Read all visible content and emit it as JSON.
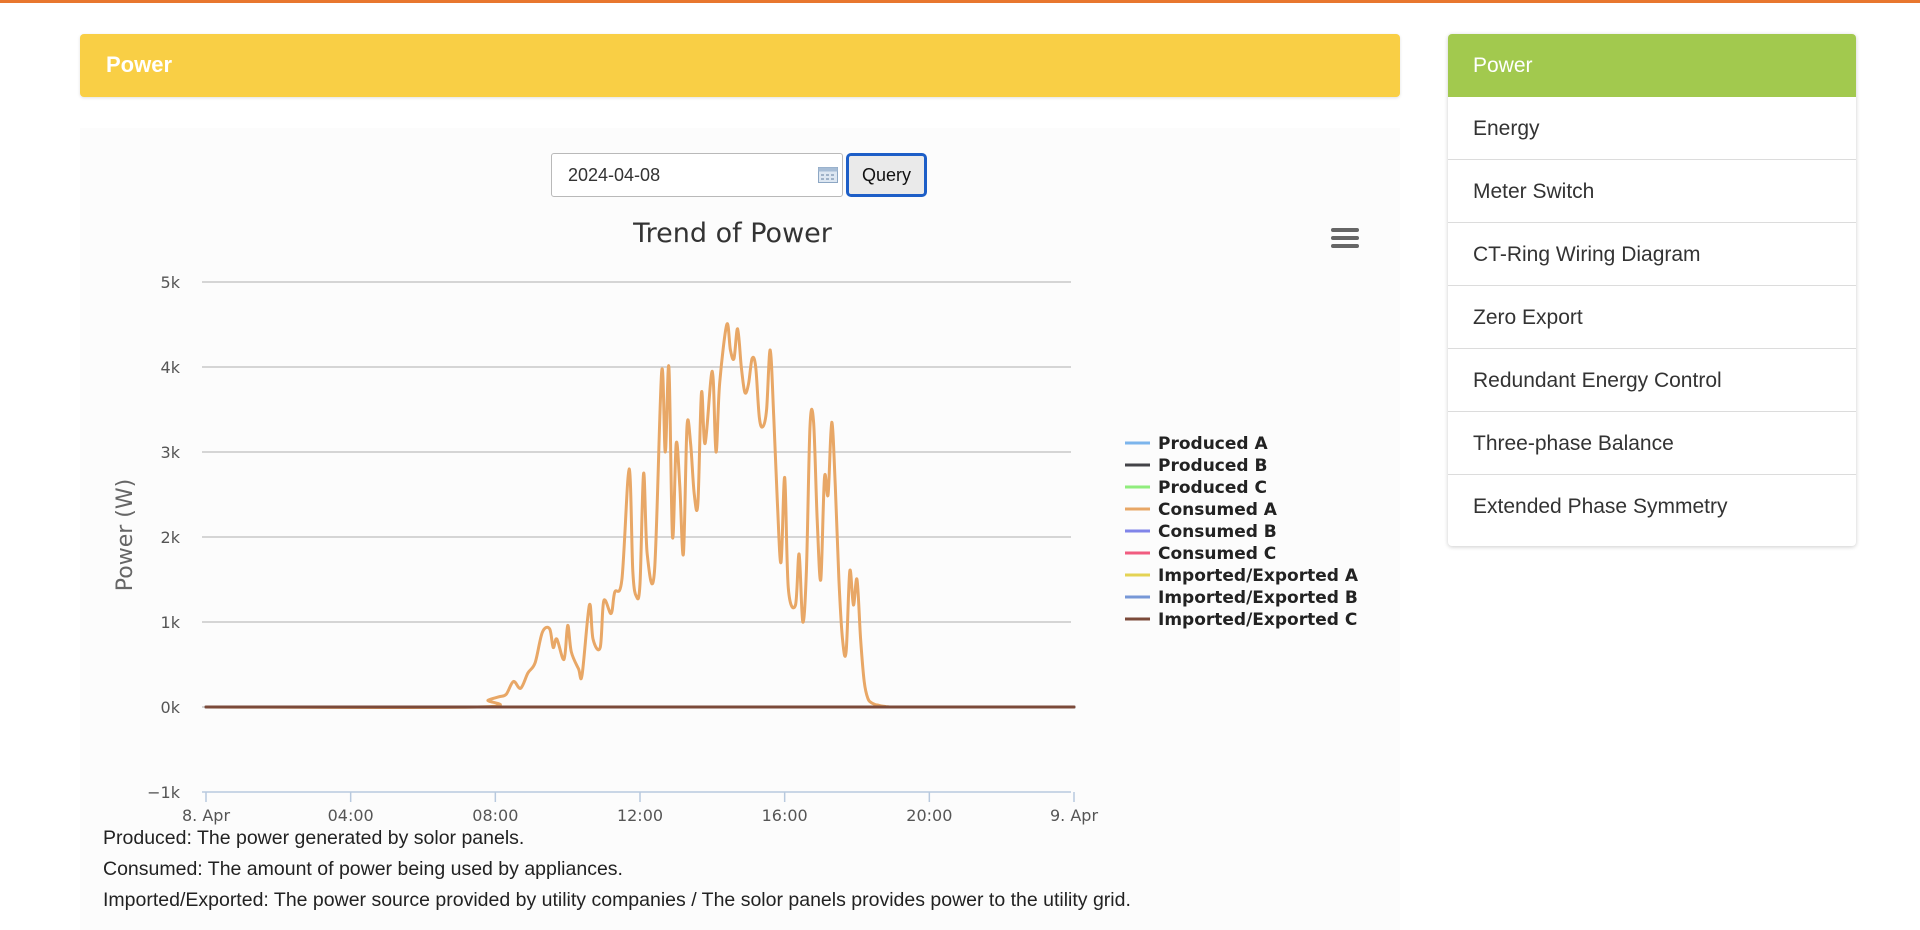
{
  "header": {
    "title": "Power"
  },
  "query": {
    "date_value": "2024-04-08",
    "button_label": "Query"
  },
  "chart_data": {
    "type": "line",
    "title": "Trend of Power",
    "ylabel": "Power (W)",
    "ylim": [
      -1000,
      5000
    ],
    "yticks": [
      -1000,
      0,
      1000,
      2000,
      3000,
      4000,
      5000
    ],
    "ytick_labels": [
      "−1k",
      "0k",
      "1k",
      "2k",
      "3k",
      "4k",
      "5k"
    ],
    "xticks": [
      "8. Apr",
      "04:00",
      "08:00",
      "12:00",
      "16:00",
      "20:00",
      "9. Apr"
    ],
    "xlim_hours": [
      0,
      24
    ],
    "legend_position": "right",
    "series": [
      {
        "name": "Produced A",
        "color": "#7cb5ec",
        "x": [
          0,
          24
        ],
        "y": [
          0,
          0
        ]
      },
      {
        "name": "Produced B",
        "color": "#434348",
        "x": [
          0,
          24
        ],
        "y": [
          0,
          0
        ]
      },
      {
        "name": "Produced C",
        "color": "#90ed7d",
        "x": [
          0,
          24
        ],
        "y": [
          0,
          0
        ]
      },
      {
        "name": "Consumed A",
        "color": "#e8a766",
        "x": [
          0,
          7.5,
          7.8,
          8.1,
          8.3,
          8.5,
          8.7,
          8.9,
          9.1,
          9.3,
          9.5,
          9.6,
          9.7,
          9.9,
          10.0,
          10.1,
          10.3,
          10.4,
          10.6,
          10.7,
          10.9,
          11.0,
          11.2,
          11.3,
          11.5,
          11.7,
          11.8,
          11.9,
          12.0,
          12.1,
          12.2,
          12.4,
          12.6,
          12.7,
          12.8,
          12.9,
          13.0,
          13.1,
          13.2,
          13.3,
          13.4,
          13.5,
          13.6,
          13.7,
          13.8,
          14.0,
          14.1,
          14.2,
          14.4,
          14.5,
          14.6,
          14.7,
          14.8,
          14.9,
          15.0,
          15.1,
          15.2,
          15.3,
          15.4,
          15.5,
          15.6,
          15.7,
          15.8,
          15.9,
          16.0,
          16.1,
          16.3,
          16.4,
          16.5,
          16.6,
          16.7,
          16.8,
          16.9,
          17.0,
          17.1,
          17.2,
          17.3,
          17.4,
          17.5,
          17.6,
          17.7,
          17.8,
          17.9,
          18.0,
          18.1,
          18.2,
          18.3,
          18.4,
          18.5,
          18.6,
          18.7,
          18.8,
          18.9,
          19.0,
          19.1,
          19.2,
          19.3,
          19.5,
          19.7,
          20.0,
          24
        ],
        "y": [
          0,
          0,
          80,
          120,
          150,
          300,
          220,
          400,
          520,
          880,
          920,
          700,
          800,
          560,
          960,
          650,
          450,
          380,
          1200,
          800,
          700,
          1250,
          1100,
          1350,
          1500,
          2800,
          1600,
          1300,
          1450,
          2750,
          1800,
          1600,
          3950,
          3000,
          4000,
          2000,
          3100,
          2600,
          1800,
          3300,
          3100,
          2500,
          2400,
          3700,
          3100,
          3950,
          3000,
          3800,
          4500,
          4200,
          4100,
          4450,
          4000,
          3700,
          3800,
          4100,
          4000,
          3400,
          3300,
          3500,
          4200,
          3400,
          2400,
          1700,
          2700,
          1400,
          1200,
          1800,
          1000,
          1600,
          3300,
          3350,
          2200,
          1500,
          2700,
          2500,
          3350,
          2600,
          1500,
          800,
          650,
          1600,
          1200,
          1500,
          800,
          300,
          100,
          50,
          30,
          20,
          10,
          5,
          0,
          0,
          0,
          0,
          0,
          0,
          0,
          0,
          0
        ]
      },
      {
        "name": "Consumed B",
        "color": "#8085e9",
        "x": [
          0,
          24
        ],
        "y": [
          0,
          0
        ]
      },
      {
        "name": "Consumed C",
        "color": "#f15c80",
        "x": [
          0,
          24
        ],
        "y": [
          0,
          0
        ]
      },
      {
        "name": "Imported/Exported A",
        "color": "#e4d354",
        "x": [
          0,
          24
        ],
        "y": [
          0,
          0
        ]
      },
      {
        "name": "Imported/Exported B",
        "color": "#7798d7",
        "x": [
          0,
          24
        ],
        "y": [
          0,
          0
        ]
      },
      {
        "name": "Imported/Exported C",
        "color": "#7b4a3a",
        "x": [
          0,
          24
        ],
        "y": [
          0,
          0
        ]
      }
    ]
  },
  "notes": {
    "produced": "Produced: The power generated by solor panels.",
    "consumed": "Consumed: The amount of power being used by appliances.",
    "imported": "Imported/Exported: The power source provided by utility companies / The solor panels provides power to the utility grid."
  },
  "sidebar": {
    "items": [
      {
        "label": "Power",
        "active": true
      },
      {
        "label": "Energy"
      },
      {
        "label": "Meter Switch"
      },
      {
        "label": "CT-Ring Wiring Diagram"
      },
      {
        "label": "Zero Export"
      },
      {
        "label": "Redundant Energy Control"
      },
      {
        "label": "Three-phase Balance"
      },
      {
        "label": "Extended Phase Symmetry"
      }
    ]
  },
  "colors": {
    "header": "#f9cf45",
    "sidebar_active": "#a2c94e",
    "top_bar": "#e8772e"
  }
}
